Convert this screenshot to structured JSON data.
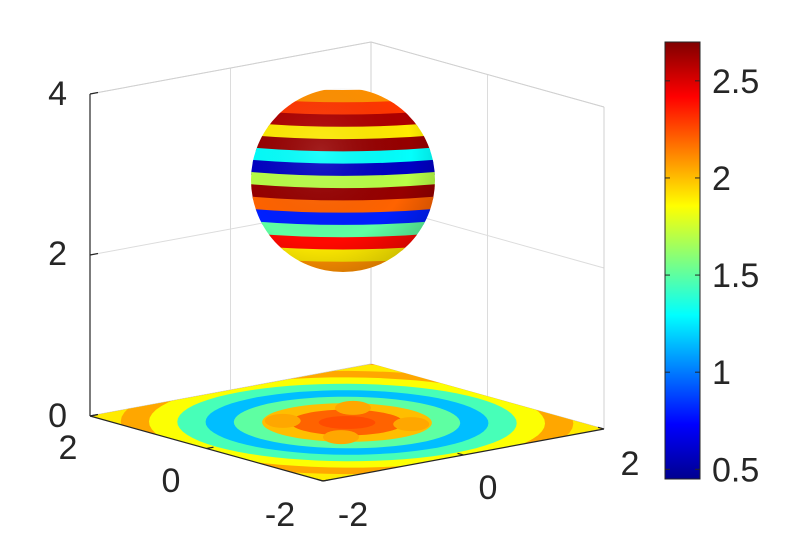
{
  "chart_data": {
    "type": "surface3d",
    "title": "",
    "xlabel": "",
    "ylabel": "",
    "zlabel": "",
    "axes": {
      "x": {
        "range": [
          -2,
          2
        ],
        "ticks": [
          -2,
          0,
          2
        ],
        "tick_labels": [
          "-2",
          "0",
          "2"
        ]
      },
      "y": {
        "range": [
          -2,
          2
        ],
        "ticks": [
          -2,
          0,
          2
        ],
        "tick_labels": [
          "-2",
          "0",
          "2"
        ]
      },
      "z": {
        "range": [
          0,
          4
        ],
        "ticks": [
          0,
          2,
          4
        ],
        "tick_labels": [
          "0",
          "2",
          "4"
        ]
      }
    },
    "grid": true,
    "colormap": "jet",
    "colorbar": {
      "range": [
        0.45,
        2.7
      ],
      "ticks": [
        0.5,
        1,
        1.5,
        2,
        2.5
      ],
      "tick_labels": [
        "0.5",
        "1",
        "1.5",
        "2",
        "2.5"
      ],
      "placement": "right"
    },
    "objects": [
      {
        "kind": "sphere",
        "center": [
          0,
          0,
          3
        ],
        "radius": 1,
        "color_pattern": "latitudinal bands",
        "band_values": [
          2.1,
          2.3,
          2.6,
          1.9,
          2.65,
          1.3,
          0.6,
          1.7,
          2.65,
          2.2,
          0.8,
          1.5,
          2.4,
          1.9,
          2.1
        ]
      },
      {
        "kind": "plane",
        "z": 0,
        "extent": [
          [
            -2,
            2
          ],
          [
            -2,
            2
          ]
        ],
        "color_pattern": "radial rings",
        "ring_values": [
          2.1,
          1.9,
          2.05,
          1.85,
          1.45,
          1.15,
          1.5,
          2.0,
          2.2,
          2.25
        ]
      }
    ]
  }
}
